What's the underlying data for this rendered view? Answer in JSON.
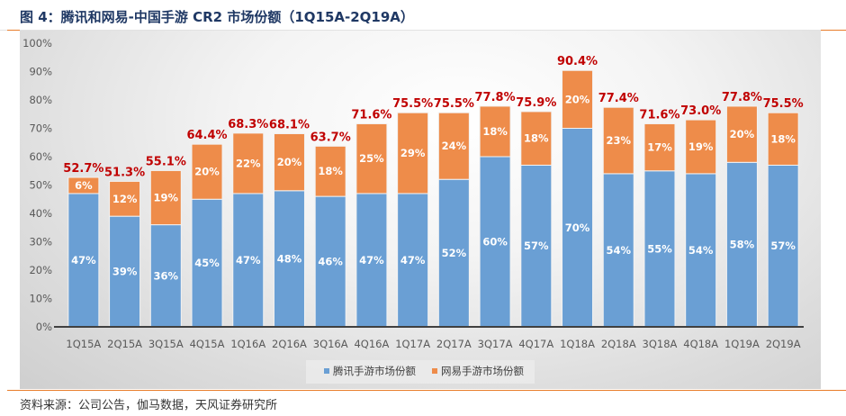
{
  "header": {
    "title": "图 4：腾讯和网易-中国手游 CR2 市场份额（1Q15A-2Q19A）"
  },
  "footer": {
    "source": "资料来源：公司公告，伽马数据，天风证券研究所"
  },
  "colors": {
    "tencent": "#6a9fd4",
    "netease": "#ee8c4a",
    "total_label": "#c00000",
    "axis": "#404040",
    "tick_text": "#595959",
    "accent_rule": "#e87d2a"
  },
  "chart_data": {
    "type": "bar",
    "stacked": true,
    "title": "腾讯和网易-中国手游 CR2 市场份额（1Q15A-2Q19A）",
    "xlabel": "",
    "ylabel": "",
    "ylim": [
      0,
      100
    ],
    "yticks": [
      "0%",
      "10%",
      "20%",
      "30%",
      "40%",
      "50%",
      "60%",
      "70%",
      "80%",
      "90%",
      "100%"
    ],
    "grid": false,
    "legend_position": "bottom",
    "categories": [
      "1Q15A",
      "2Q15A",
      "3Q15A",
      "4Q15A",
      "1Q16A",
      "2Q16A",
      "3Q16A",
      "4Q16A",
      "1Q17A",
      "2Q17A",
      "3Q17A",
      "4Q17A",
      "1Q18A",
      "2Q18A",
      "3Q18A",
      "4Q18A",
      "1Q19A",
      "2Q19A"
    ],
    "series": [
      {
        "name": "腾讯手游市场份额",
        "values": [
          47,
          39,
          36,
          45,
          47,
          48,
          46,
          47,
          47,
          52,
          60,
          57,
          70,
          54,
          55,
          54,
          58,
          57
        ],
        "labels": [
          "47%",
          "39%",
          "36%",
          "45%",
          "47%",
          "48%",
          "46%",
          "47%",
          "47%",
          "52%",
          "60%",
          "57%",
          "70%",
          "54%",
          "55%",
          "54%",
          "58%",
          "57%"
        ]
      },
      {
        "name": "网易手游市场份额",
        "values": [
          6,
          12,
          19,
          20,
          22,
          20,
          18,
          25,
          29,
          24,
          18,
          18,
          20,
          23,
          17,
          19,
          20,
          18
        ],
        "labels": [
          "6%",
          "12%",
          "19%",
          "20%",
          "22%",
          "20%",
          "18%",
          "25%",
          "29%",
          "24%",
          "18%",
          "18%",
          "20%",
          "23%",
          "17%",
          "19%",
          "20%",
          "18%"
        ]
      }
    ],
    "totals": [
      52.7,
      51.3,
      55.1,
      64.4,
      68.3,
      68.1,
      63.7,
      71.6,
      75.5,
      75.5,
      77.8,
      75.9,
      90.4,
      77.4,
      71.6,
      73.0,
      77.8,
      75.5
    ],
    "total_labels": [
      "52.7%",
      "51.3%",
      "55.1%",
      "64.4%",
      "68.3%",
      "68.1%",
      "63.7%",
      "71.6%",
      "75.5%",
      "75.5%",
      "77.8%",
      "75.9%",
      "90.4%",
      "77.4%",
      "71.6%",
      "73.0%",
      "77.8%",
      "75.5%"
    ]
  }
}
